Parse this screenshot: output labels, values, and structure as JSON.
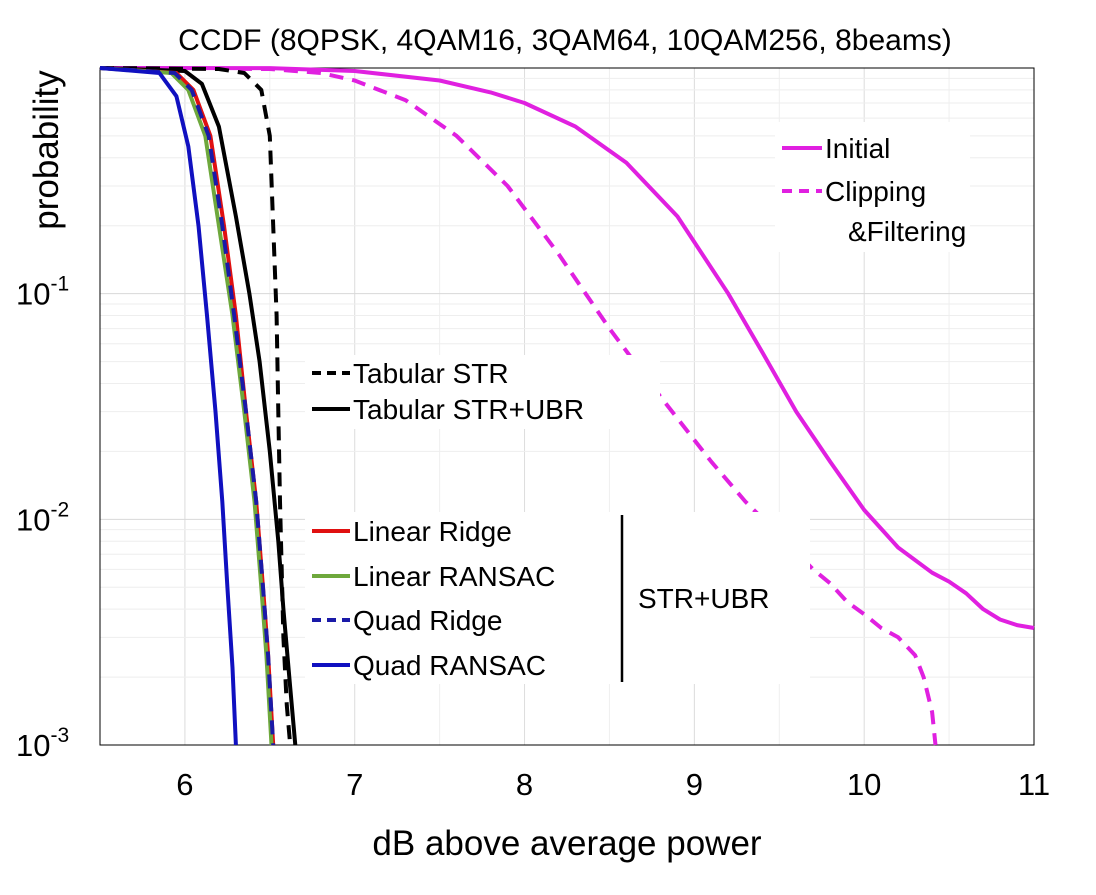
{
  "chart_data": {
    "type": "line",
    "title": "CCDF (8QPSK, 4QAM16, 3QAM64, 10QAM256, 8beams)",
    "xlabel": "dB above average power",
    "ylabel": "probability",
    "xlim": [
      5.5,
      11
    ],
    "ylim": [
      0.001,
      1
    ],
    "y_scale": "log",
    "grid": true,
    "x_ticks": [
      "6",
      "7",
      "8",
      "9",
      "10",
      "11"
    ],
    "y_ticks": [
      {
        "base": "10",
        "exp": "-1"
      },
      {
        "base": "10",
        "exp": "-2"
      },
      {
        "base": "10",
        "exp": "-3"
      }
    ],
    "series": [
      {
        "name": "Initial",
        "color": "#e020e0",
        "dash": "solid",
        "x": [
          5.5,
          6.5,
          7.0,
          7.5,
          7.8,
          8.0,
          8.3,
          8.6,
          8.9,
          9.2,
          9.4,
          9.6,
          9.8,
          10.0,
          10.2,
          10.4,
          10.5,
          10.6,
          10.7,
          10.8,
          10.9,
          11.0
        ],
        "y": [
          1.0,
          0.999,
          0.97,
          0.88,
          0.78,
          0.7,
          0.55,
          0.38,
          0.22,
          0.1,
          0.055,
          0.03,
          0.018,
          0.011,
          0.0075,
          0.0058,
          0.0053,
          0.0047,
          0.004,
          0.0036,
          0.0034,
          0.0033
        ]
      },
      {
        "name": "Clipping &Filtering",
        "color": "#e020e0",
        "dash": "dashed",
        "x": [
          5.5,
          6.5,
          6.8,
          7.0,
          7.3,
          7.6,
          7.9,
          8.2,
          8.5,
          8.8,
          9.1,
          9.3,
          9.5,
          9.7,
          9.8,
          9.9,
          10.0,
          10.1,
          10.2,
          10.3,
          10.35,
          10.4,
          10.42
        ],
        "y": [
          1.0,
          0.99,
          0.95,
          0.88,
          0.72,
          0.5,
          0.3,
          0.15,
          0.07,
          0.035,
          0.018,
          0.012,
          0.0085,
          0.006,
          0.0052,
          0.0043,
          0.0038,
          0.0033,
          0.003,
          0.0025,
          0.002,
          0.0014,
          0.001
        ]
      },
      {
        "name": "Tabular STR",
        "color": "#000000",
        "dash": "dashed",
        "x": [
          5.5,
          6.2,
          6.35,
          6.45,
          6.5,
          6.52,
          6.54,
          6.55,
          6.56,
          6.57,
          6.58,
          6.6,
          6.62
        ],
        "y": [
          1.0,
          0.99,
          0.95,
          0.8,
          0.5,
          0.2,
          0.08,
          0.03,
          0.012,
          0.006,
          0.003,
          0.0015,
          0.001
        ]
      },
      {
        "name": "Tabular STR+UBR",
        "color": "#000000",
        "dash": "solid",
        "x": [
          5.5,
          6.0,
          6.1,
          6.2,
          6.3,
          6.38,
          6.44,
          6.5,
          6.55,
          6.58,
          6.62,
          6.65
        ],
        "y": [
          1.0,
          0.97,
          0.85,
          0.55,
          0.22,
          0.1,
          0.05,
          0.02,
          0.008,
          0.004,
          0.0018,
          0.001
        ]
      },
      {
        "name": "Linear Ridge",
        "color": "#e01010",
        "dash": "solid",
        "x": [
          5.5,
          5.95,
          6.05,
          6.15,
          6.23,
          6.3,
          6.36,
          6.42,
          6.46,
          6.49,
          6.52
        ],
        "y": [
          1.0,
          0.95,
          0.8,
          0.5,
          0.2,
          0.08,
          0.03,
          0.012,
          0.005,
          0.0025,
          0.001
        ]
      },
      {
        "name": "Linear RANSAC",
        "color": "#6ea83c",
        "dash": "solid",
        "x": [
          5.5,
          5.92,
          6.02,
          6.12,
          6.2,
          6.28,
          6.35,
          6.41,
          6.45,
          6.48,
          6.51
        ],
        "y": [
          1.0,
          0.95,
          0.8,
          0.5,
          0.2,
          0.08,
          0.03,
          0.012,
          0.005,
          0.0025,
          0.001
        ]
      },
      {
        "name": "Quad Ridge",
        "color": "#1a1aa8",
        "dash": "dashed",
        "x": [
          5.5,
          5.94,
          6.04,
          6.14,
          6.22,
          6.29,
          6.36,
          6.42,
          6.46,
          6.49,
          6.52
        ],
        "y": [
          1.0,
          0.95,
          0.8,
          0.5,
          0.2,
          0.08,
          0.03,
          0.012,
          0.005,
          0.0025,
          0.001
        ]
      },
      {
        "name": "Quad RANSAC",
        "color": "#1010c0",
        "dash": "solid",
        "x": [
          5.5,
          5.85,
          5.95,
          6.02,
          6.08,
          6.13,
          6.18,
          6.22,
          6.25,
          6.28,
          6.3
        ],
        "y": [
          1.0,
          0.95,
          0.75,
          0.45,
          0.2,
          0.08,
          0.03,
          0.012,
          0.005,
          0.0022,
          0.001
        ]
      }
    ],
    "legend": {
      "magenta": [
        "Initial",
        "Clipping",
        "&Filtering"
      ],
      "tabular": [
        "Tabular STR",
        "Tabular STR+UBR"
      ],
      "model": [
        "Linear Ridge",
        "Linear RANSAC",
        "Quad Ridge",
        "Quad RANSAC"
      ],
      "group_label": "STR+UBR"
    }
  }
}
